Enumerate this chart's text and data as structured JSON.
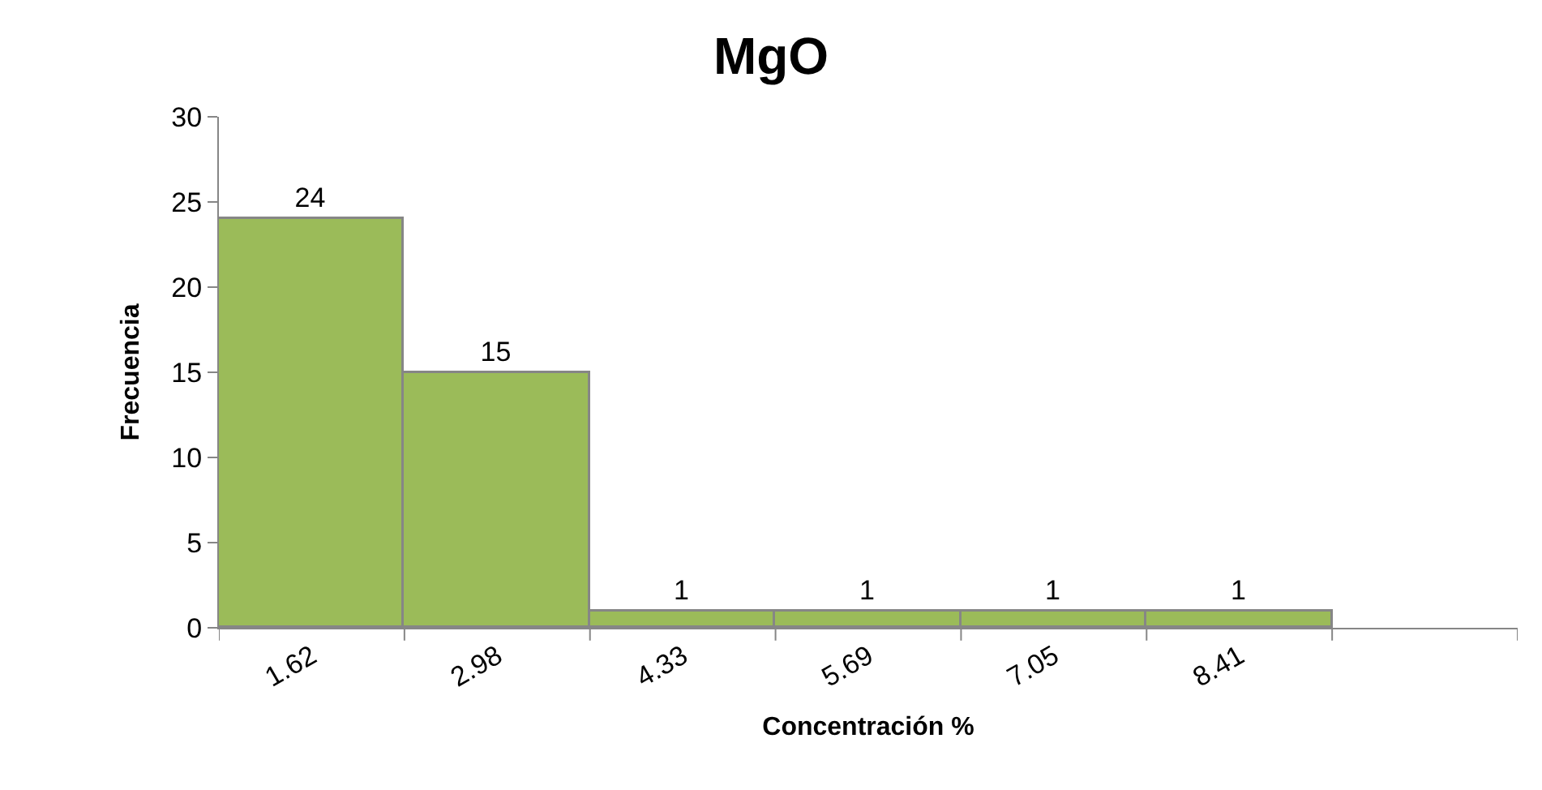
{
  "chart_data": {
    "type": "bar",
    "title": "MgO",
    "xlabel": "Concentración %",
    "ylabel": "Frecuencia",
    "categories": [
      "1.62",
      "2.98",
      "4.33",
      "5.69",
      "7.05",
      "8.41",
      null
    ],
    "values": [
      24,
      15,
      1,
      1,
      1,
      1,
      null
    ],
    "color": "#9bbb59",
    "ylim": [
      0,
      30
    ],
    "yticks": [
      0,
      5,
      10,
      15,
      20,
      25,
      30
    ],
    "data_labels": true
  }
}
